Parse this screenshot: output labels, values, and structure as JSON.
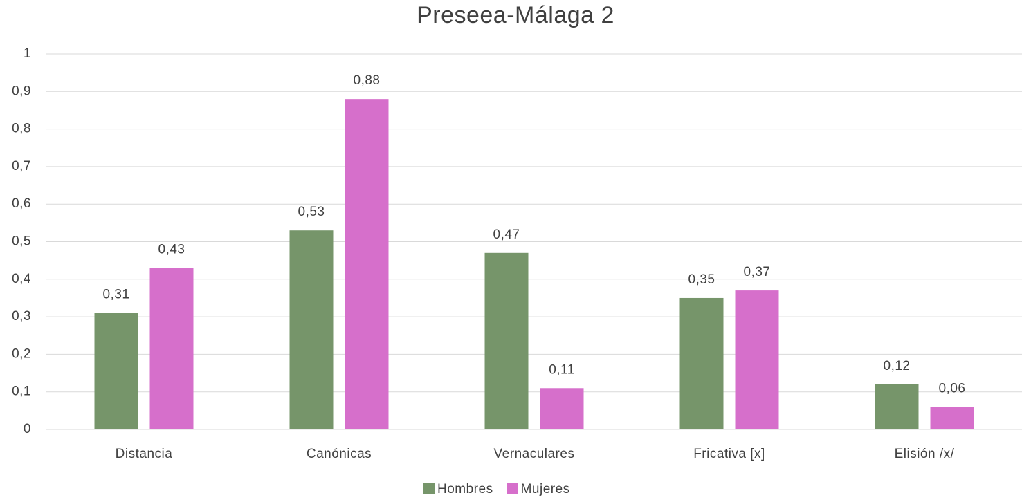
{
  "chart_data": {
    "type": "bar",
    "title": "Preseea-Málaga 2",
    "categories": [
      "Distancia",
      "Canónicas",
      "Vernaculares",
      "Fricativa [x]",
      "Elisión /x/"
    ],
    "series": [
      {
        "name": "Hombres",
        "color": "#76956a",
        "values": [
          0.31,
          0.53,
          0.47,
          0.35,
          0.12
        ],
        "value_labels": [
          "0,31",
          "0,53",
          "0,47",
          "0,35",
          "0,12"
        ]
      },
      {
        "name": "Mujeres",
        "color": "#d66fcb",
        "values": [
          0.43,
          0.88,
          0.11,
          0.37,
          0.06
        ],
        "value_labels": [
          "0,43",
          "0,88",
          "0,11",
          "0,37",
          "0,06"
        ]
      }
    ],
    "ylim": [
      0,
      1
    ],
    "yticks": [
      0,
      {
        "value": 0.1,
        "label": "0,1"
      },
      {
        "value": 0.2,
        "label": "0,2"
      },
      {
        "value": 0.3,
        "label": "0,3"
      },
      {
        "value": 0.4,
        "label": "0,4"
      },
      {
        "value": 0.5,
        "label": "0,5"
      },
      {
        "value": 0.6,
        "label": "0,6"
      },
      {
        "value": 0.7,
        "label": "0,7"
      },
      {
        "value": 0.8,
        "label": "0,8"
      },
      {
        "value": 0.9,
        "label": "0,9"
      },
      1
    ],
    "grid": true,
    "legend": "bottom"
  }
}
